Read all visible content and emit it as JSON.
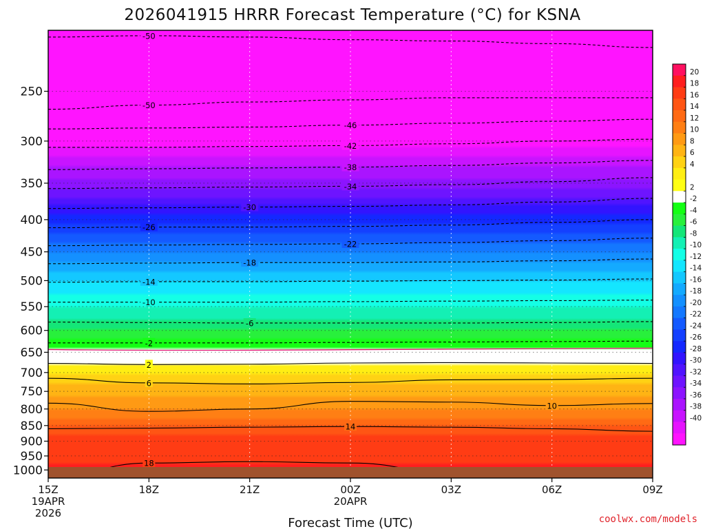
{
  "chart_data": {
    "type": "heatmap",
    "title": "2026041915 HRRR Forecast Temperature (°C) for KSNA",
    "xlabel": "Forecast Time (UTC)",
    "ylabel": "",
    "credit": "coolwx.com/models",
    "y_axis": {
      "scale": "log-pressure",
      "reversed": true,
      "range": [
        1030,
        200
      ],
      "ticks": [
        250,
        300,
        350,
        400,
        450,
        500,
        550,
        600,
        650,
        700,
        750,
        800,
        850,
        900,
        950,
        1000
      ]
    },
    "x_axis": {
      "range_hours": [
        0,
        18
      ],
      "ticks": [
        {
          "hour": 0,
          "label": "15Z",
          "sub1": "19APR",
          "sub2": "2026"
        },
        {
          "hour": 3,
          "label": "18Z",
          "sub1": "",
          "sub2": ""
        },
        {
          "hour": 6,
          "label": "21Z",
          "sub1": "",
          "sub2": ""
        },
        {
          "hour": 9,
          "label": "00Z",
          "sub1": "20APR",
          "sub2": ""
        },
        {
          "hour": 12,
          "label": "03Z",
          "sub1": "",
          "sub2": ""
        },
        {
          "hour": 15,
          "label": "06Z",
          "sub1": "",
          "sub2": ""
        },
        {
          "hour": 18,
          "label": "09Z",
          "sub1": "",
          "sub2": ""
        }
      ]
    },
    "colorbar": {
      "units": "°C",
      "labels": [
        20,
        18,
        16,
        14,
        12,
        10,
        8,
        6,
        4,
        2,
        -2,
        -4,
        -6,
        -8,
        -10,
        -12,
        -14,
        -16,
        -18,
        -20,
        -22,
        -24,
        -26,
        -28,
        -30,
        -32,
        -34,
        -36,
        -38,
        -40
      ],
      "colors": [
        "#ff1060",
        "#ff1e1e",
        "#ff3c14",
        "#ff5514",
        "#ff6a14",
        "#ff7f14",
        "#ff9a14",
        "#ffb414",
        "#ffd214",
        "#ffee14",
        "#ffff14",
        "#ffffff",
        "#14ff14",
        "#28f03c",
        "#14e678",
        "#14f0b4",
        "#14ffe6",
        "#14e6ff",
        "#14c8ff",
        "#14aaff",
        "#1490ff",
        "#1478ff",
        "#145aff",
        "#1440ff",
        "#1428ff",
        "#3214ff",
        "#5014ff",
        "#6e14ff",
        "#8c14ff",
        "#aa14ff",
        "#c814ff",
        "#e614ff",
        "#ff14ff"
      ]
    },
    "series": [
      {
        "values": [
          [
            0,
            200,
            -50
          ],
          [
            18,
            200,
            -50
          ]
        ]
      }
    ],
    "profile_start": [
      {
        "p": 200,
        "t": -51
      },
      {
        "p": 250,
        "t": -50
      },
      {
        "p": 300,
        "t": -43
      },
      {
        "p": 350,
        "t": -35
      },
      {
        "p": 400,
        "t": -27
      },
      {
        "p": 450,
        "t": -20
      },
      {
        "p": 500,
        "t": -14
      },
      {
        "p": 550,
        "t": -10
      },
      {
        "p": 600,
        "t": -6
      },
      {
        "p": 650,
        "t": -1
      },
      {
        "p": 700,
        "t": 4
      },
      {
        "p": 750,
        "t": 7
      },
      {
        "p": 800,
        "t": 10
      },
      {
        "p": 850,
        "t": 14
      },
      {
        "p": 900,
        "t": 17
      },
      {
        "p": 950,
        "t": 17
      },
      {
        "p": 1000,
        "t": 19
      }
    ],
    "contours": [
      {
        "label": "-50",
        "p": [
          205,
          204,
          205,
          207,
          208,
          210,
          213
        ],
        "label_at": 1
      },
      {
        "label": "-50",
        "p": [
          267,
          263,
          260,
          258,
          256,
          256,
          256
        ],
        "label_at": 1
      },
      {
        "label": "-46",
        "p": [
          287,
          286,
          285,
          283,
          281,
          279,
          277
        ],
        "label_at": 3
      },
      {
        "label": "-42",
        "p": [
          307,
          307,
          306,
          305,
          303,
          300,
          298
        ],
        "label_at": 3
      },
      {
        "label": "-38",
        "p": [
          333,
          332,
          331,
          330,
          328,
          325,
          322
        ],
        "label_at": 3
      },
      {
        "label": "-34",
        "p": [
          357,
          356,
          355,
          354,
          352,
          348,
          343
        ],
        "label_at": 3
      },
      {
        "label": "-30",
        "p": [
          384,
          383,
          382,
          381,
          379,
          375,
          370
        ],
        "label_at": 2
      },
      {
        "label": "-26",
        "p": [
          412,
          411,
          411,
          410,
          408,
          404,
          400
        ],
        "label_at": 1
      },
      {
        "label": "-22",
        "p": [
          440,
          439,
          438,
          437,
          435,
          432,
          428
        ],
        "label_at": 3
      },
      {
        "label": "-18",
        "p": [
          470,
          469,
          468,
          468,
          467,
          465,
          462
        ],
        "label_at": 2
      },
      {
        "label": "-14",
        "p": [
          503,
          502,
          502,
          501,
          500,
          499,
          497
        ],
        "label_at": 1
      },
      {
        "label": "-10",
        "p": [
          541,
          541,
          541,
          540,
          539,
          538,
          537
        ],
        "label_at": 1
      },
      {
        "label": "-6",
        "p": [
          582,
          583,
          584,
          584,
          584,
          583,
          581
        ],
        "label_at": 2
      },
      {
        "label": "-2",
        "p": [
          628,
          628,
          628,
          627,
          626,
          625,
          624
        ],
        "label_at": 1
      },
      {
        "label": "2",
        "p": [
          677,
          680,
          679,
          676,
          675,
          676,
          677
        ],
        "label_at": 1
      },
      {
        "label": "6",
        "p": [
          715,
          727,
          730,
          726,
          719,
          718,
          715
        ],
        "label_at": 1
      },
      {
        "label": "10",
        "p": [
          783,
          807,
          800,
          778,
          780,
          790,
          784
        ],
        "label_at": 5
      },
      {
        "label": "14",
        "p": [
          860,
          858,
          855,
          853,
          855,
          860,
          868
        ],
        "label_at": 3
      },
      {
        "label": "18",
        "p": [
          1030,
          975,
          970,
          975,
          1010,
          1030,
          1030
        ],
        "label_at": 1
      }
    ]
  }
}
